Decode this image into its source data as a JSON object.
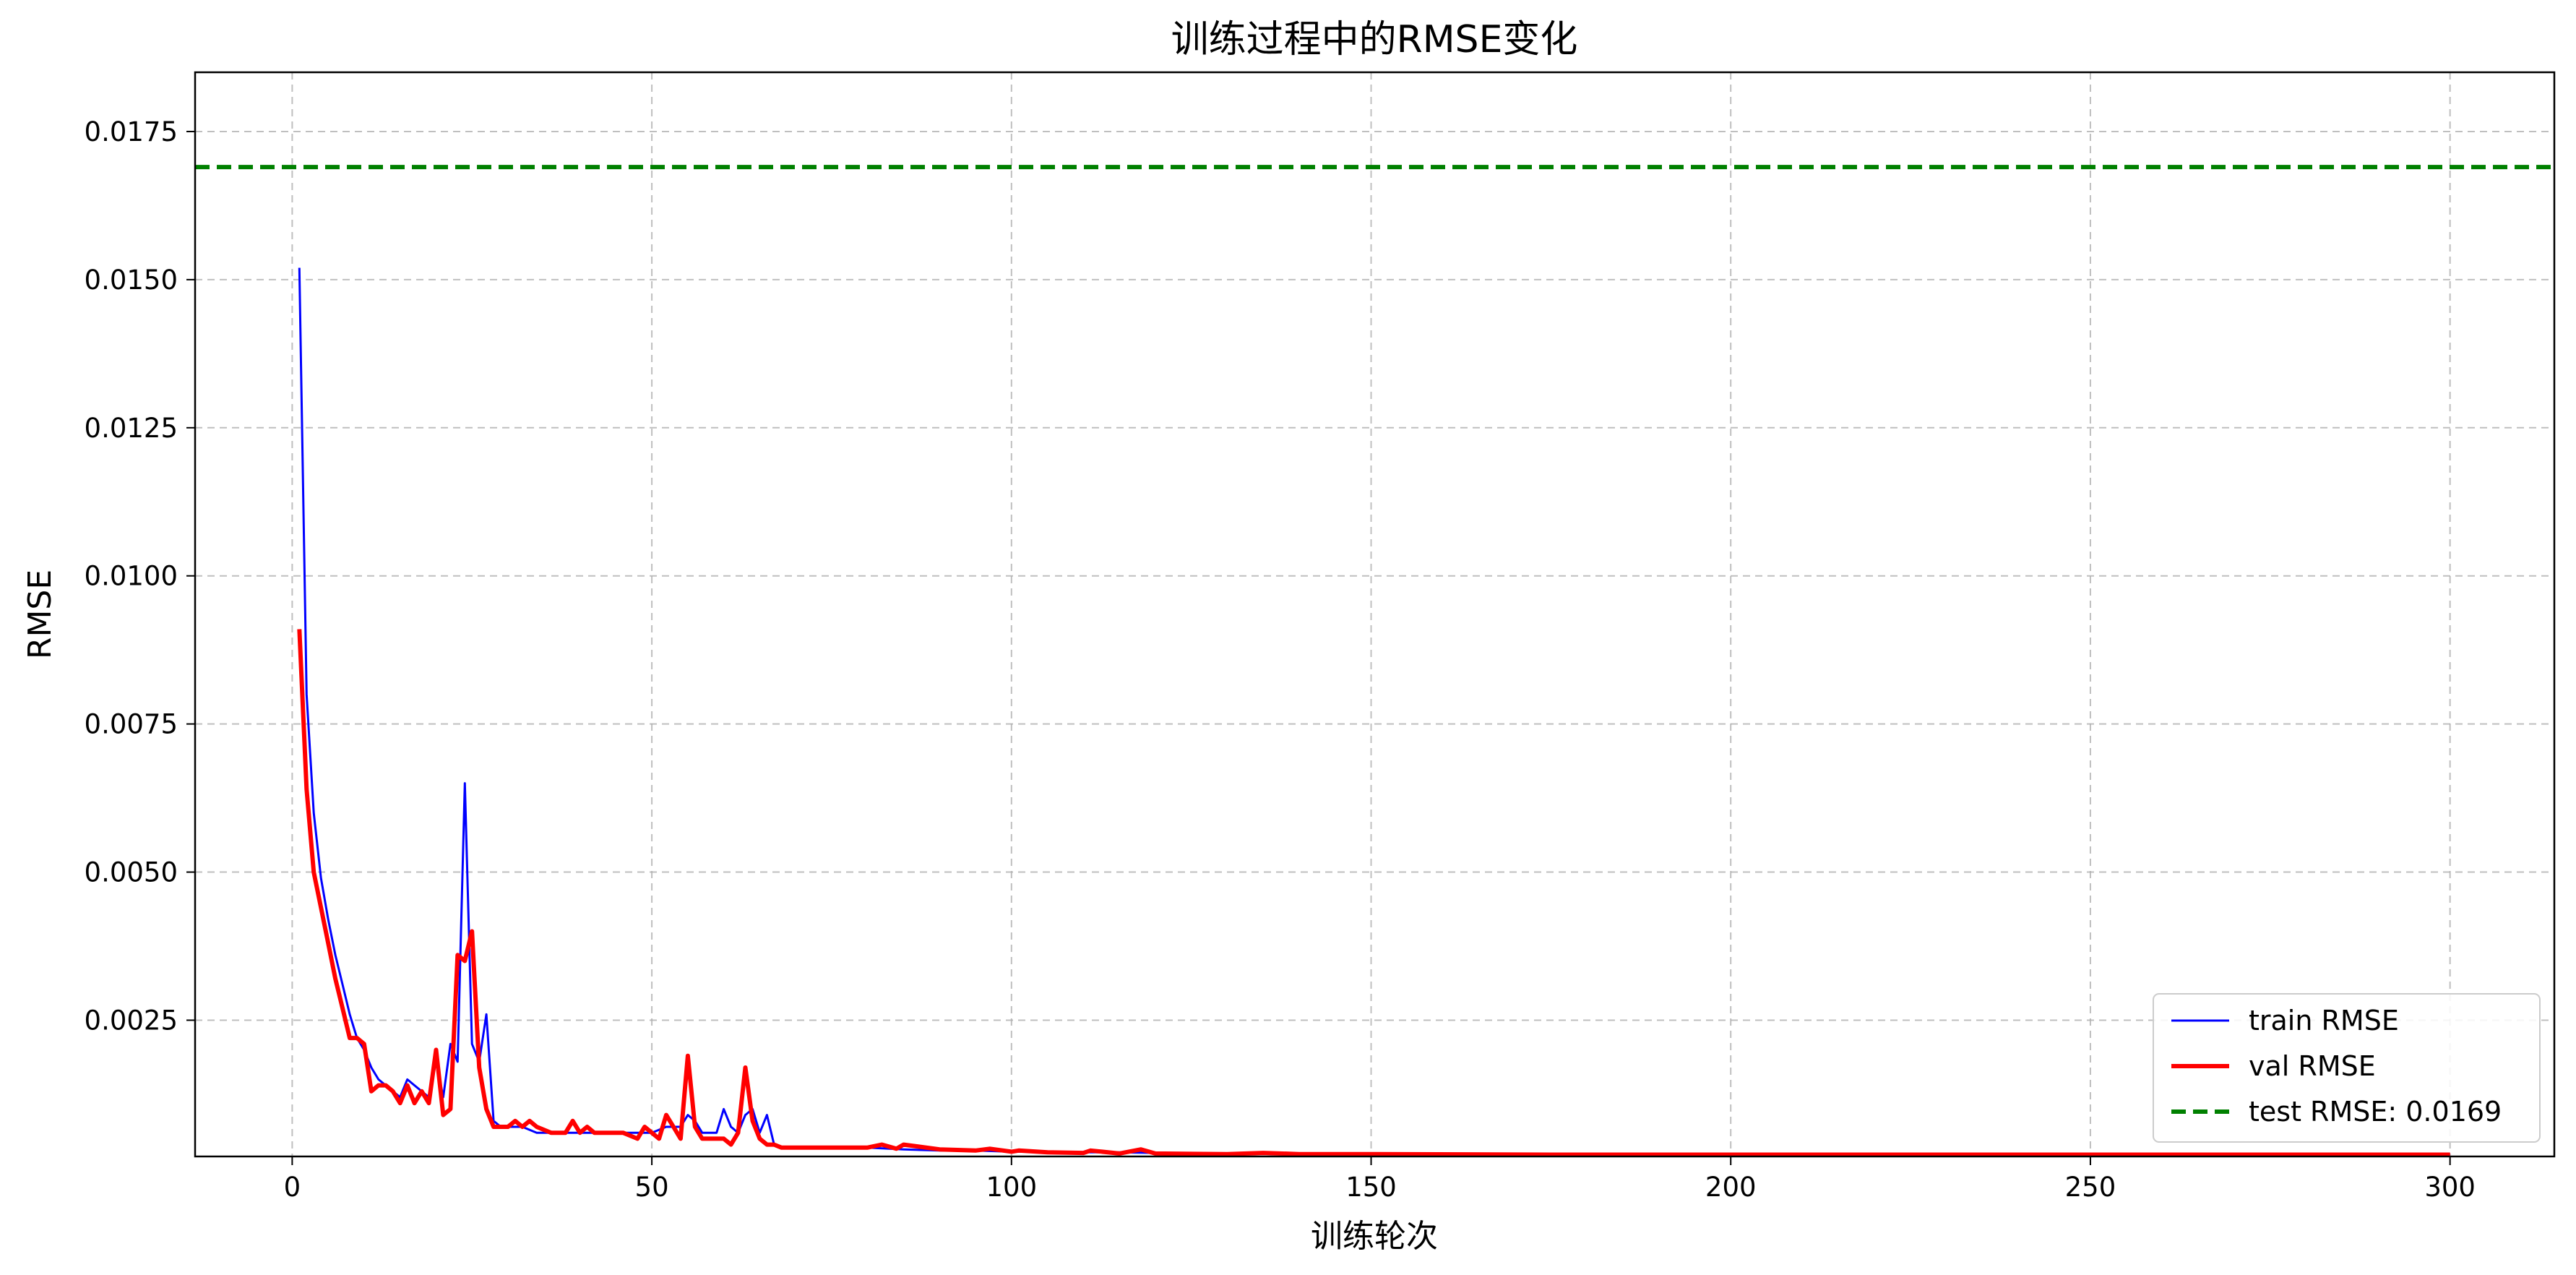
{
  "chart_data": {
    "type": "line",
    "title": "训练过程中的RMSE变化",
    "xlabel": "训练轮次",
    "ylabel": "RMSE",
    "xlim": [
      -13.5,
      314.5
    ],
    "ylim": [
      0.0002,
      0.0185
    ],
    "xticks": [
      0,
      50,
      100,
      150,
      200,
      250,
      300
    ],
    "yticks": [
      0.0025,
      0.005,
      0.0075,
      0.01,
      0.0125,
      0.015,
      0.0175
    ],
    "ytick_labels": [
      "0.0025",
      "0.0050",
      "0.0075",
      "0.0100",
      "0.0125",
      "0.0150",
      "0.0175"
    ],
    "grid": true,
    "legend_position": "lower-right",
    "series": [
      {
        "name": "train RMSE",
        "color": "#0000ff",
        "style": "solid",
        "x": [
          1,
          2,
          3,
          4,
          5,
          6,
          7,
          8,
          9,
          10,
          11,
          12,
          13,
          14,
          15,
          16,
          17,
          18,
          19,
          20,
          21,
          22,
          23,
          24,
          25,
          26,
          27,
          28,
          29,
          30,
          32,
          34,
          36,
          38,
          40,
          42,
          44,
          46,
          48,
          50,
          52,
          54,
          55,
          56,
          57,
          58,
          59,
          60,
          61,
          62,
          63,
          64,
          65,
          66,
          67,
          68,
          70,
          75,
          80,
          85,
          90,
          95,
          100,
          105,
          110,
          115,
          120,
          130,
          140,
          150,
          175,
          200,
          225,
          250,
          275,
          300
        ],
        "y": [
          0.0152,
          0.008,
          0.006,
          0.0049,
          0.0042,
          0.0036,
          0.0031,
          0.0026,
          0.0022,
          0.002,
          0.0017,
          0.0015,
          0.0014,
          0.0013,
          0.0012,
          0.0015,
          0.0014,
          0.0013,
          0.0012,
          0.0018,
          0.0012,
          0.0021,
          0.0018,
          0.0065,
          0.0021,
          0.0018,
          0.0026,
          0.0008,
          0.0007,
          0.0007,
          0.0007,
          0.0006,
          0.0006,
          0.0006,
          0.0006,
          0.0006,
          0.0006,
          0.0006,
          0.0006,
          0.0006,
          0.0007,
          0.0007,
          0.0009,
          0.0008,
          0.0006,
          0.0006,
          0.0006,
          0.001,
          0.0007,
          0.0006,
          0.0009,
          0.001,
          0.0006,
          0.0009,
          0.0004,
          0.00035,
          0.00035,
          0.00035,
          0.00035,
          0.00032,
          0.0003,
          0.0003,
          0.00028,
          0.00028,
          0.00027,
          0.00027,
          0.00026,
          0.00025,
          0.00025,
          0.00025,
          0.00024,
          0.00024,
          0.00024,
          0.00024,
          0.00024,
          0.00024
        ]
      },
      {
        "name": "val RMSE",
        "color": "#ff0000",
        "style": "solid",
        "x": [
          1,
          2,
          3,
          4,
          5,
          6,
          7,
          8,
          9,
          10,
          11,
          12,
          13,
          14,
          15,
          16,
          17,
          18,
          19,
          20,
          21,
          22,
          23,
          24,
          25,
          26,
          27,
          28,
          30,
          31,
          32,
          33,
          34,
          36,
          38,
          39,
          40,
          41,
          42,
          44,
          46,
          48,
          49,
          50,
          51,
          52,
          53,
          54,
          55,
          56,
          57,
          58,
          59,
          60,
          61,
          62,
          63,
          64,
          65,
          66,
          67,
          68,
          70,
          75,
          80,
          82,
          84,
          85,
          90,
          95,
          97,
          100,
          101,
          105,
          110,
          111,
          115,
          118,
          120,
          130,
          135,
          140,
          150,
          175,
          200,
          225,
          250,
          275,
          300
        ],
        "y": [
          0.0091,
          0.0064,
          0.005,
          0.0044,
          0.0038,
          0.0032,
          0.0027,
          0.0022,
          0.0022,
          0.0021,
          0.0013,
          0.0014,
          0.0014,
          0.0013,
          0.0011,
          0.0014,
          0.0011,
          0.0013,
          0.0011,
          0.002,
          0.0009,
          0.001,
          0.0036,
          0.0035,
          0.004,
          0.0017,
          0.001,
          0.0007,
          0.0007,
          0.0008,
          0.0007,
          0.0008,
          0.0007,
          0.0006,
          0.0006,
          0.0008,
          0.0006,
          0.0007,
          0.0006,
          0.0006,
          0.0006,
          0.0005,
          0.0007,
          0.0006,
          0.0005,
          0.0009,
          0.0007,
          0.0005,
          0.0019,
          0.0007,
          0.0005,
          0.0005,
          0.0005,
          0.0005,
          0.0004,
          0.0006,
          0.0017,
          0.0008,
          0.0005,
          0.0004,
          0.0004,
          0.00035,
          0.00035,
          0.00035,
          0.00035,
          0.0004,
          0.00033,
          0.0004,
          0.00032,
          0.0003,
          0.00033,
          0.00028,
          0.0003,
          0.00027,
          0.00026,
          0.0003,
          0.00025,
          0.00032,
          0.00025,
          0.00024,
          0.00026,
          0.00024,
          0.00024,
          0.00023,
          0.00023,
          0.00023,
          0.00023,
          0.00023,
          0.00023
        ]
      },
      {
        "name": "test RMSE: 0.0169",
        "color": "#008000",
        "style": "dashed",
        "value": 0.0169
      }
    ]
  }
}
